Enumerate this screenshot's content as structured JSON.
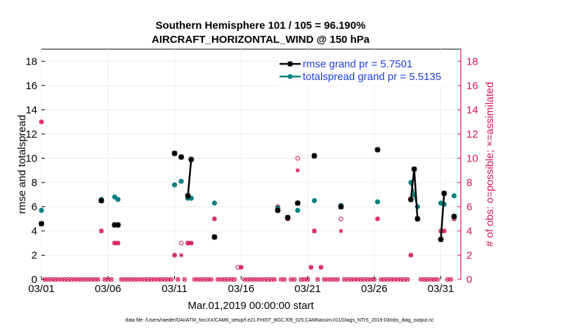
{
  "chart_data": {
    "type": "scatter",
    "title_line1": "Southern Hemisphere 101 / 105 = 96.190%",
    "title_line2": "AIRCRAFT_HORIZONTAL_WIND @ 150 hPa",
    "xlabel": "Mar.01,2019 00:00:00 start",
    "ylabel": "rmse and totalspread",
    "ylabel_right": "# of obs: o=possible; ×=assimilated",
    "xlim": [
      0,
      31.5
    ],
    "ylim": [
      0,
      19
    ],
    "ylim_right": [
      0,
      19
    ],
    "x_ticks": [
      {
        "x": 0,
        "label": "03/01"
      },
      {
        "x": 5,
        "label": "03/06"
      },
      {
        "x": 10,
        "label": "03/11"
      },
      {
        "x": 15,
        "label": "03/16"
      },
      {
        "x": 20,
        "label": "03/21"
      },
      {
        "x": 25,
        "label": "03/26"
      },
      {
        "x": 30,
        "label": "03/31"
      }
    ],
    "y_ticks": [
      0,
      2,
      4,
      6,
      8,
      10,
      12,
      14,
      16,
      18
    ],
    "y_ticks_right": [
      0,
      2,
      4,
      6,
      8,
      10,
      12,
      14,
      16,
      18
    ],
    "legend": [
      {
        "name": "rmse",
        "label": "rmse grand pr = 5.7501",
        "color": "#000000"
      },
      {
        "name": "totalspread",
        "label": "totalspread grand pr = 5.5135",
        "color": "#008080"
      }
    ],
    "rmse": {
      "color": "#000000",
      "points": [
        [
          0,
          4.6
        ],
        [
          4.5,
          6.5
        ],
        [
          5.5,
          4.5
        ],
        [
          5.75,
          4.5
        ],
        [
          10,
          10.4
        ],
        [
          10.5,
          10.1
        ],
        [
          11,
          6.9
        ],
        [
          11.25,
          9.9
        ],
        [
          13,
          3.5
        ],
        [
          17.75,
          5.7
        ],
        [
          18.5,
          5.1
        ],
        [
          19.25,
          6.3
        ],
        [
          20.5,
          10.2
        ],
        [
          22.5,
          6.0
        ],
        [
          25.25,
          10.7
        ],
        [
          27.75,
          6.6
        ],
        [
          28,
          9.1
        ],
        [
          28.25,
          5.0
        ],
        [
          30,
          3.3
        ],
        [
          30.25,
          7.1
        ],
        [
          31,
          5.2
        ]
      ],
      "segments": [
        [
          [
            11,
            6.9
          ],
          [
            11.25,
            9.9
          ]
        ],
        [
          [
            27.75,
            6.6
          ],
          [
            28,
            9.1
          ],
          [
            28.25,
            5.0
          ]
        ],
        [
          [
            30,
            3.3
          ],
          [
            30.25,
            7.1
          ]
        ]
      ]
    },
    "totalspread": {
      "color": "#008080",
      "points": [
        [
          0,
          5.7
        ],
        [
          4.5,
          6.6
        ],
        [
          5.5,
          6.8
        ],
        [
          5.75,
          6.6
        ],
        [
          10,
          7.8
        ],
        [
          10.5,
          8.1
        ],
        [
          11,
          6.7
        ],
        [
          11.25,
          6.7
        ],
        [
          13,
          6.3
        ],
        [
          17.75,
          5.9
        ],
        [
          18.5,
          5.1
        ],
        [
          19.25,
          5.7
        ],
        [
          20.5,
          6.5
        ],
        [
          22.5,
          6.1
        ],
        [
          25.25,
          6.4
        ],
        [
          27.75,
          8.0
        ],
        [
          28,
          7.0
        ],
        [
          28.25,
          6.0
        ],
        [
          30,
          6.3
        ],
        [
          30.25,
          6.2
        ],
        [
          31,
          6.9
        ]
      ],
      "segments": [
        [
          [
            11,
            6.7
          ],
          [
            11.25,
            6.7
          ]
        ],
        [
          [
            27.75,
            8.0
          ],
          [
            28,
            7.0
          ],
          [
            28.25,
            6.0
          ]
        ],
        [
          [
            30,
            6.3
          ],
          [
            30.25,
            6.2
          ]
        ]
      ]
    },
    "nposs": {
      "color": "#d6175b",
      "zero_step": 0.25,
      "points": [
        [
          0,
          13
        ],
        [
          4.5,
          4
        ],
        [
          5.5,
          3
        ],
        [
          5.75,
          3
        ],
        [
          10,
          2
        ],
        [
          10.5,
          3
        ],
        [
          11,
          3
        ],
        [
          11.25,
          3
        ],
        [
          13,
          5
        ],
        [
          14.75,
          1
        ],
        [
          15,
          1
        ],
        [
          17.75,
          6
        ],
        [
          18.5,
          5
        ],
        [
          19.25,
          10
        ],
        [
          20.25,
          1
        ],
        [
          20.5,
          4
        ],
        [
          21,
          1
        ],
        [
          22.5,
          5
        ],
        [
          25.25,
          5
        ],
        [
          27.75,
          2
        ],
        [
          28,
          7
        ],
        [
          28.25,
          5
        ],
        [
          30,
          4
        ],
        [
          30.25,
          4
        ],
        [
          31,
          5
        ]
      ]
    },
    "nused": {
      "color": "#d6175b",
      "points": [
        [
          0,
          13
        ],
        [
          4.5,
          4
        ],
        [
          5.5,
          3
        ],
        [
          5.75,
          3
        ],
        [
          10,
          2
        ],
        [
          10.5,
          2
        ],
        [
          11,
          3
        ],
        [
          11.25,
          3
        ],
        [
          13,
          5
        ],
        [
          15,
          1
        ],
        [
          17.75,
          6
        ],
        [
          18.5,
          5
        ],
        [
          19.25,
          9
        ],
        [
          20.25,
          1
        ],
        [
          20.5,
          4
        ],
        [
          21,
          1
        ],
        [
          22.5,
          4
        ],
        [
          25.25,
          5
        ],
        [
          27.75,
          2
        ],
        [
          28,
          7
        ],
        [
          28.25,
          5
        ],
        [
          30,
          4
        ],
        [
          30.25,
          4
        ],
        [
          31,
          5
        ]
      ]
    },
    "footer": "data file: /Users/raeder/DAI/ATM_forcXX/CAM6_setup/f.e21.FHIST_BGC.f09_025.CAM6assim.011/Diags_NTrS_2019-03/obs_diag_output.nc"
  }
}
